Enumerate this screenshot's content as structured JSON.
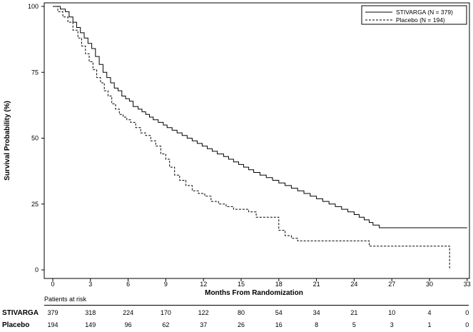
{
  "chart_data": {
    "type": "line",
    "subtype": "kaplan-meier",
    "xlabel": "Months From Randomization",
    "ylabel": "Survival Probability (%)",
    "xlim": [
      0,
      33
    ],
    "ylim": [
      0,
      100
    ],
    "xticks": [
      0,
      3,
      6,
      9,
      12,
      15,
      18,
      21,
      24,
      27,
      30,
      33
    ],
    "yticks": [
      0,
      25,
      50,
      75,
      100
    ],
    "legend_position": "top-right",
    "grid": false,
    "series": [
      {
        "name": "STIVARGA (N = 379)",
        "line_style": "solid",
        "color": "#000000",
        "x": [
          0,
          0.6,
          1.0,
          1.3,
          1.6,
          1.9,
          2.2,
          2.5,
          2.8,
          3.1,
          3.4,
          3.7,
          4.0,
          4.3,
          4.6,
          4.9,
          5.2,
          5.5,
          5.8,
          6.1,
          6.4,
          6.8,
          7.1,
          7.4,
          7.7,
          8.0,
          8.4,
          8.8,
          9.1,
          9.5,
          9.9,
          10.3,
          10.7,
          11.1,
          11.5,
          11.9,
          12.3,
          12.7,
          13.1,
          13.6,
          14.0,
          14.4,
          14.8,
          15.2,
          15.6,
          16.0,
          16.5,
          17.0,
          17.5,
          18.0,
          18.5,
          19.0,
          19.5,
          20.0,
          20.5,
          21.0,
          21.5,
          22.0,
          22.5,
          23.0,
          23.5,
          24.0,
          24.4,
          24.8,
          25.2,
          25.5,
          26.0,
          27.0,
          28.0,
          29.0,
          30.0,
          31.0,
          32.0,
          33.0
        ],
        "y": [
          100,
          99,
          98,
          96,
          94,
          92,
          90,
          88,
          86,
          84,
          81,
          78,
          75,
          73,
          71,
          69,
          68,
          66,
          65,
          64,
          62,
          61,
          60,
          59,
          58,
          57,
          56,
          55,
          54,
          53,
          52,
          51,
          50,
          49,
          48,
          47,
          46,
          45,
          44,
          43,
          42,
          41,
          40,
          39,
          38,
          37,
          36,
          35,
          34,
          33,
          32,
          31,
          30,
          29,
          28,
          27,
          26,
          25,
          24,
          23,
          22,
          21,
          20,
          19,
          18,
          17,
          16,
          16,
          16,
          16,
          16,
          16,
          16,
          16
        ]
      },
      {
        "name": "Placebo (N = 194)",
        "line_style": "dashed",
        "color": "#000000",
        "x": [
          0,
          0.4,
          0.8,
          1.2,
          1.6,
          2.0,
          2.3,
          2.6,
          2.9,
          3.2,
          3.5,
          3.8,
          4.1,
          4.4,
          4.7,
          5.0,
          5.3,
          5.6,
          5.9,
          6.2,
          6.6,
          7.0,
          7.4,
          7.8,
          8.2,
          8.6,
          9.0,
          9.3,
          9.7,
          10.1,
          10.6,
          11.1,
          11.6,
          12.1,
          12.6,
          13.2,
          13.8,
          14.4,
          15.0,
          15.6,
          16.2,
          16.8,
          17.4,
          18.0,
          18.5,
          19.0,
          19.5,
          20.5,
          21.5,
          22.5,
          23.5,
          24.5,
          25.2,
          26.0,
          27.0,
          28.0,
          29.0,
          30.0,
          31.0,
          31.6
        ],
        "y": [
          100,
          98,
          96,
          94,
          91,
          88,
          85,
          82,
          79,
          76,
          73,
          71,
          68,
          66,
          63,
          61,
          59,
          58,
          57,
          56,
          54,
          52,
          51,
          49,
          47,
          44,
          42,
          39,
          36,
          34,
          32,
          30,
          29,
          28,
          26,
          25,
          24,
          23,
          23,
          22,
          20,
          20,
          20,
          15,
          13,
          12,
          11,
          11,
          11,
          11,
          11,
          11,
          9,
          9,
          9,
          9,
          9,
          9,
          9,
          0
        ]
      }
    ],
    "risk_table": {
      "title": "Patients at risk",
      "times": [
        0,
        3,
        6,
        9,
        12,
        15,
        18,
        21,
        24,
        27,
        30,
        33
      ],
      "rows": [
        {
          "label": "STIVARGA",
          "values": [
            "379",
            "318",
            "224",
            "170",
            "122",
            "80",
            "54",
            "34",
            "21",
            "10",
            "4",
            "0"
          ]
        },
        {
          "label": "Placebo",
          "values": [
            "194",
            "149",
            "96",
            "62",
            "37",
            "26",
            "16",
            "8",
            "5",
            "3",
            "1",
            "0"
          ]
        }
      ]
    }
  }
}
